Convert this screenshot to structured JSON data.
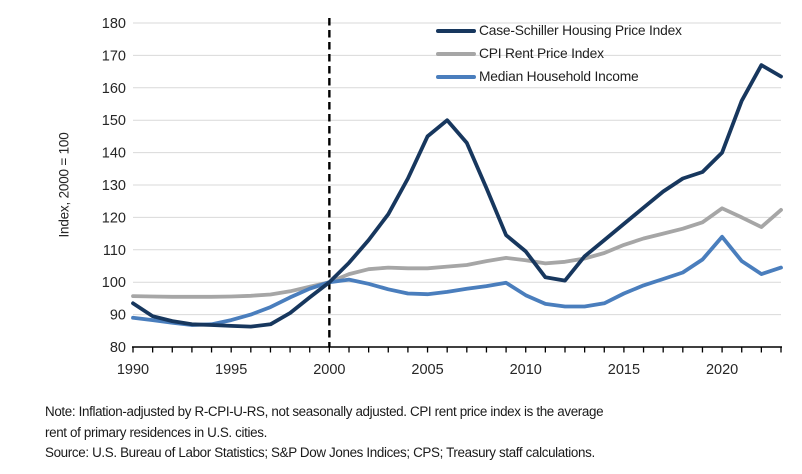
{
  "chart_data": {
    "type": "line",
    "title": "",
    "xlabel": "",
    "ylabel": "Index, 2000 = 100",
    "xlim": [
      1990,
      2023
    ],
    "ylim": [
      80,
      180
    ],
    "xticks": [
      1990,
      1995,
      2000,
      2005,
      2010,
      2015,
      2020
    ],
    "yticks": [
      80,
      90,
      100,
      110,
      120,
      130,
      140,
      150,
      160,
      170,
      180
    ],
    "grid": "horizontal",
    "legend_position": "top-right-inside",
    "marker_line_x": 2000,
    "marker_line_style": "black-dashed-vertical",
    "x": [
      1990,
      1991,
      1992,
      1993,
      1994,
      1995,
      1996,
      1997,
      1998,
      1999,
      2000,
      2001,
      2002,
      2003,
      2004,
      2005,
      2006,
      2007,
      2008,
      2009,
      2010,
      2011,
      2012,
      2013,
      2014,
      2015,
      2016,
      2017,
      2018,
      2019,
      2020,
      2021,
      2022,
      2023
    ],
    "series": [
      {
        "name": "Case-Schiller Housing Price Index",
        "color": "#17375e",
        "values": [
          93.5,
          89.5,
          88,
          87,
          86.8,
          86.5,
          86.3,
          87,
          90.5,
          95.3,
          100,
          106,
          113,
          121,
          132,
          145,
          150,
          143,
          129,
          114.5,
          109.5,
          101.5,
          100.5,
          108,
          113,
          118,
          123,
          128,
          132,
          134,
          140,
          156,
          167,
          163.5
        ]
      },
      {
        "name": "CPI Rent Price Index",
        "color": "#a6a6a6",
        "values": [
          95.7,
          95.6,
          95.5,
          95.5,
          95.5,
          95.6,
          95.8,
          96.2,
          97.2,
          98.6,
          100,
          102.5,
          104,
          104.5,
          104.3,
          104.3,
          104.8,
          105.3,
          106.5,
          107.5,
          106.8,
          105.8,
          106.3,
          107.3,
          109,
          111.5,
          113.5,
          115,
          116.5,
          118.5,
          122.8,
          120,
          117,
          122.3
        ]
      },
      {
        "name": "Median Household Income",
        "color": "#4a7ebd",
        "values": [
          89,
          88.3,
          87.5,
          86.8,
          87,
          88.3,
          90,
          92.3,
          95.3,
          98,
          100,
          100.8,
          99.5,
          97.8,
          96.5,
          96.3,
          97,
          98,
          98.8,
          99.8,
          96,
          93.3,
          92.5,
          92.5,
          93.5,
          96.5,
          99,
          101,
          103,
          107,
          114,
          106.5,
          102.5,
          104.5
        ]
      }
    ]
  },
  "style": {
    "gridline_color": "#d9d9d9",
    "axis_color": "#000000",
    "tick_label_color": "#262626",
    "line_width": 3.8
  },
  "footnote": {
    "note_line1": "Note: Inflation-adjusted by R-CPI-U-RS, not seasonally adjusted. CPI rent price index is the average",
    "note_line2": "rent of primary residences in U.S. cities.",
    "source_line": "Source: U.S. Bureau of Labor Statistics; S&P Dow Jones Indices; CPS; Treasury staff calculations."
  }
}
